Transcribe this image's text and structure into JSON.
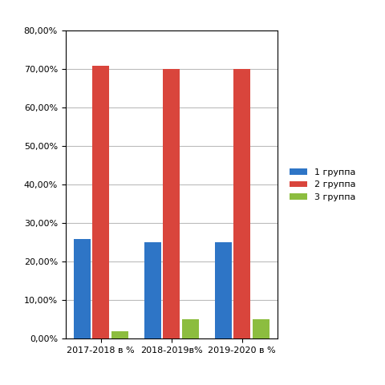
{
  "chart_data": {
    "type": "bar",
    "categories": [
      "2017-2018 в %",
      "2018-2019в%",
      "2019-2020 в %"
    ],
    "series": [
      {
        "name": "1 группа",
        "color": "#2e75c6",
        "values": [
          26,
          25,
          25
        ]
      },
      {
        "name": "2 группа",
        "color": "#d9453c",
        "values": [
          71,
          70,
          70
        ]
      },
      {
        "name": "3 группа",
        "color": "#8cbd3f",
        "values": [
          2,
          5,
          5
        ]
      }
    ],
    "ylim": [
      0,
      80
    ],
    "yticks": [
      {
        "value": 0,
        "label": "0,00%"
      },
      {
        "value": 10,
        "label": "10,00%"
      },
      {
        "value": 20,
        "label": "20,00%"
      },
      {
        "value": 30,
        "label": "30,00%"
      },
      {
        "value": 40,
        "label": "40,00%"
      },
      {
        "value": 50,
        "label": "50,00%"
      },
      {
        "value": 60,
        "label": "60,00%"
      },
      {
        "value": 70,
        "label": "70,00%"
      },
      {
        "value": 80,
        "label": "80,00%"
      }
    ],
    "grid": true,
    "legend": "right"
  }
}
